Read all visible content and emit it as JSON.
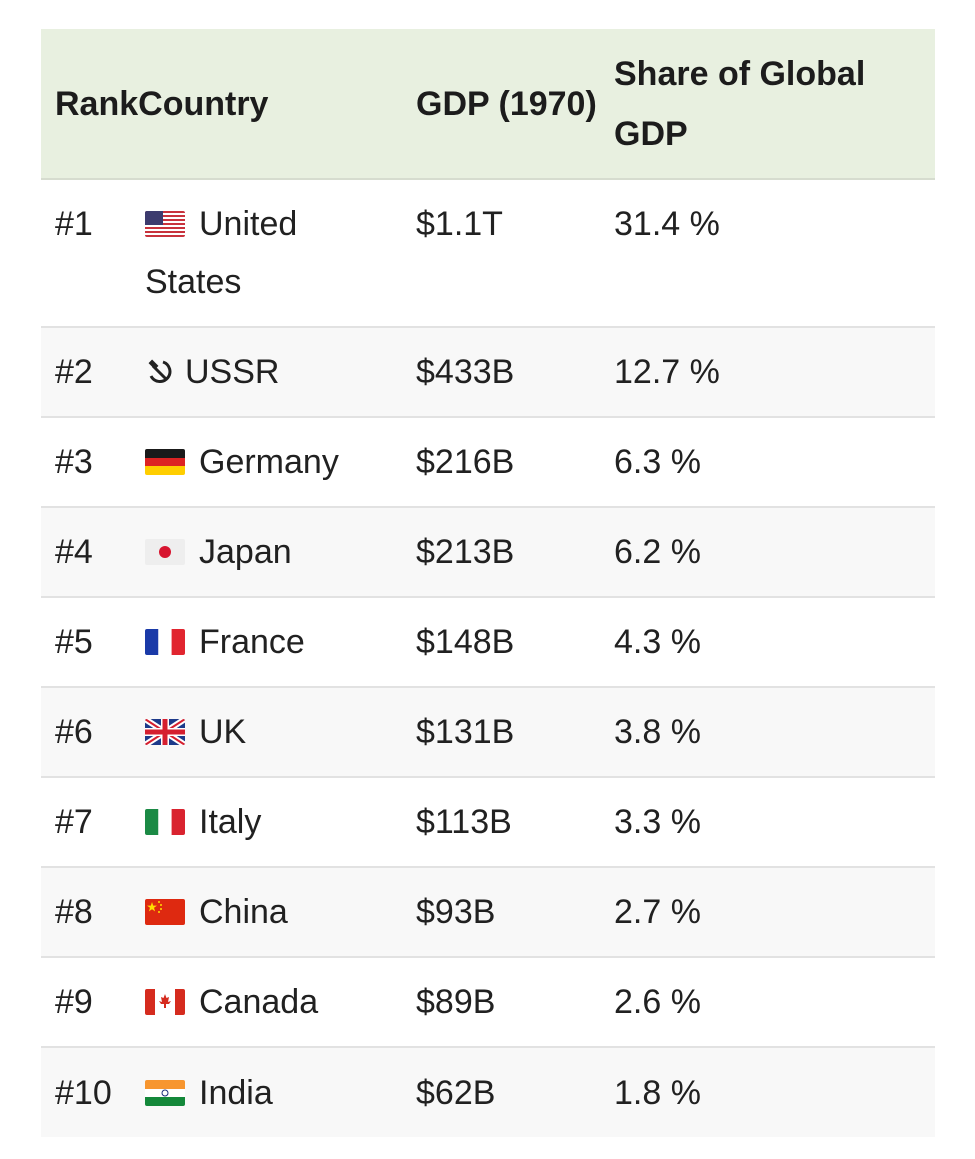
{
  "table": {
    "headers": {
      "rank_country": "RankCountry",
      "gdp": "GDP (1970)",
      "share": "Share of Global GDP"
    },
    "rows": [
      {
        "rank": "#1",
        "country": "United States",
        "gdp": "$1.1T",
        "share": "31.4 %",
        "flag": "us-flag-icon"
      },
      {
        "rank": "#2",
        "country": "USSR",
        "gdp": "$433B",
        "share": "12.7 %",
        "flag": "hammer-sickle-icon"
      },
      {
        "rank": "#3",
        "country": "Germany",
        "gdp": "$216B",
        "share": "6.3 %",
        "flag": "germany-flag-icon"
      },
      {
        "rank": "#4",
        "country": "Japan",
        "gdp": "$213B",
        "share": "6.2 %",
        "flag": "japan-flag-icon"
      },
      {
        "rank": "#5",
        "country": "France",
        "gdp": "$148B",
        "share": "4.3 %",
        "flag": "france-flag-icon"
      },
      {
        "rank": "#6",
        "country": "UK",
        "gdp": "$131B",
        "share": "3.8 %",
        "flag": "uk-flag-icon"
      },
      {
        "rank": "#7",
        "country": "Italy",
        "gdp": "$113B",
        "share": "3.3 %",
        "flag": "italy-flag-icon"
      },
      {
        "rank": "#8",
        "country": "China",
        "gdp": "$93B",
        "share": "2.7 %",
        "flag": "china-flag-icon"
      },
      {
        "rank": "#9",
        "country": "Canada",
        "gdp": "$89B",
        "share": "2.6 %",
        "flag": "canada-flag-icon"
      },
      {
        "rank": "#10",
        "country": "India",
        "gdp": "$62B",
        "share": "1.8 %",
        "flag": "india-flag-icon"
      }
    ]
  },
  "colors": {
    "header_background": "#e8f0e0",
    "row_alt_background": "#f8f8f8",
    "divider": "#e2e2e2",
    "text": "#212121"
  }
}
